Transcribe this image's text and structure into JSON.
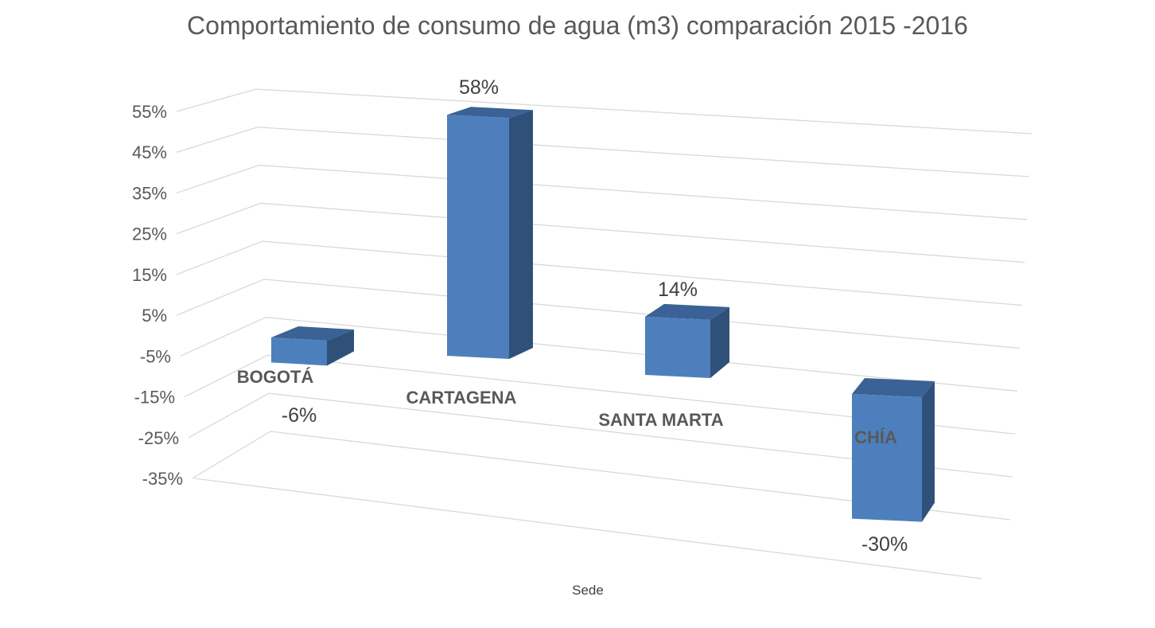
{
  "chart_data": {
    "type": "bar",
    "title": "Comportamiento de consumo de agua (m3) comparación 2015 -2016",
    "xlabel": "Sede",
    "ylabel": "",
    "categories": [
      "BOGOTÁ",
      "CARTAGENA",
      "SANTA MARTA",
      "CHÍA"
    ],
    "values": [
      -6,
      58,
      14,
      -30
    ],
    "data_labels": [
      "-6%",
      "58%",
      "14%",
      "-30%"
    ],
    "y_ticks": [
      "55%",
      "45%",
      "35%",
      "25%",
      "15%",
      "5%",
      "-5%",
      "-15%",
      "-25%",
      "-35%"
    ],
    "ylim": [
      -35,
      55
    ],
    "grid": true,
    "legend": "none",
    "colors": {
      "bar_front": "#4e7fbd",
      "bar_side": "#2f5179",
      "bar_top": "#3a6296",
      "grid": "#d9d9d9"
    }
  }
}
